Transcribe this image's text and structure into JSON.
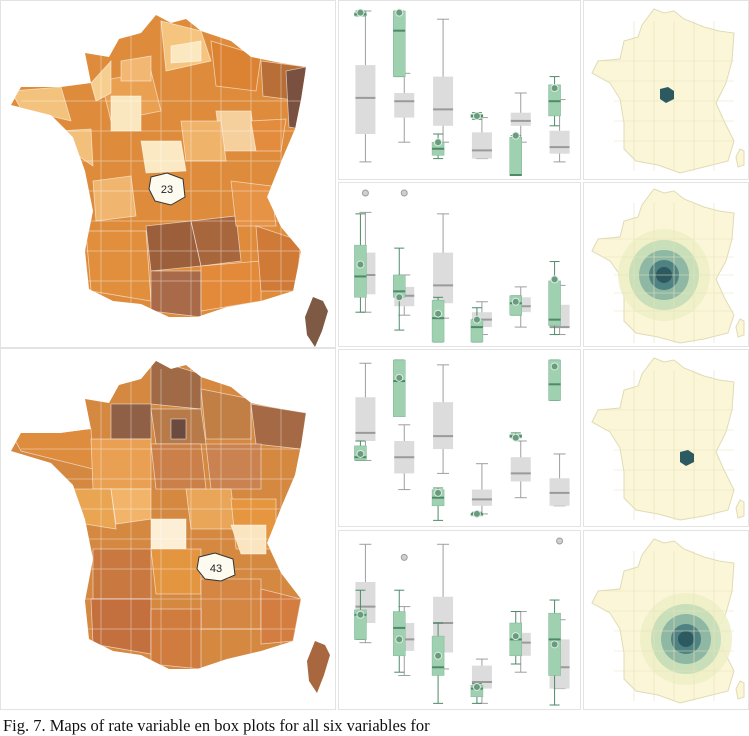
{
  "caption": "Fig. 7. Maps of rate variable en box plots for all six variables for",
  "colors": {
    "orange_dark": "#7e5a45",
    "orange_mid": "#de8a38",
    "orange_light": "#fbe3b6",
    "green_box": "#9fd0b0",
    "green_line": "#4e8a6a",
    "gray_box": "#dcdcdc",
    "gray_line": "#9e9e9e",
    "teal_dark": "#2d5a60",
    "yellow_bg": "#fbf6d8"
  },
  "rows": [
    {
      "highlight_label": "23",
      "boxplots": [
        [
          {
            "g": [
              0.97,
              0.97,
              0.98,
              0.99,
              1.0
            ],
            "o": 0.99,
            "r": [
              0.08,
              0.25,
              0.47,
              0.67,
              1.0
            ],
            "ro": null
          },
          {
            "g": [
              0.6,
              0.6,
              0.88,
              1.0,
              1.0
            ],
            "o": 0.99,
            "r": [
              0.2,
              0.35,
              0.45,
              0.5,
              0.62
            ],
            "ro": null
          },
          {
            "g": [
              0.1,
              0.12,
              0.16,
              0.2,
              0.25
            ],
            "o": 0.2,
            "r": [
              0.2,
              0.3,
              0.4,
              0.6,
              0.95
            ],
            "ro": null
          },
          {
            "g": [
              0.34,
              0.35,
              0.36,
              0.37,
              0.38
            ],
            "o": 0.36,
            "r": [
              0.1,
              0.1,
              0.15,
              0.26,
              0.35
            ],
            "ro": null
          },
          {
            "g": [
              0.0,
              0.0,
              0.0,
              0.23,
              0.24
            ],
            "o": 0.24,
            "r": [
              0.2,
              0.3,
              0.33,
              0.38,
              0.5
            ],
            "ro": null
          },
          {
            "g": [
              0.3,
              0.36,
              0.45,
              0.55,
              0.6
            ],
            "o": 0.53,
            "r": [
              0.08,
              0.13,
              0.17,
              0.27,
              0.46
            ],
            "ro": null
          }
        ],
        [
          {
            "g": [
              0.2,
              0.3,
              0.44,
              0.65,
              0.86
            ],
            "o": 0.52,
            "r": [
              0.2,
              0.32,
              0.45,
              0.6,
              0.87
            ],
            "ro": 1.0
          },
          {
            "g": [
              0.08,
              0.3,
              0.34,
              0.45,
              0.63
            ],
            "o": 0.3,
            "r": [
              0.18,
              0.24,
              0.31,
              0.37,
              0.45
            ],
            "ro": 1.0
          },
          {
            "g": [
              0.0,
              0.0,
              0.16,
              0.28,
              0.3
            ],
            "o": 0.19,
            "r": [
              0.16,
              0.26,
              0.38,
              0.6,
              0.86
            ],
            "ro": null
          },
          {
            "g": [
              0.0,
              0.0,
              0.1,
              0.15,
              0.23
            ],
            "o": 0.15,
            "r": [
              0.05,
              0.1,
              0.15,
              0.2,
              0.27
            ],
            "ro": null
          },
          {
            "g": [
              0.18,
              0.18,
              0.26,
              0.31,
              0.31
            ],
            "o": 0.27,
            "r": [
              0.1,
              0.2,
              0.24,
              0.3,
              0.37
            ],
            "ro": null
          },
          {
            "g": [
              0.05,
              0.11,
              0.15,
              0.41,
              0.54
            ],
            "o": 0.42,
            "r": [
              0.05,
              0.1,
              0.1,
              0.25,
              0.38
            ],
            "ro": null
          }
        ]
      ]
    },
    {
      "highlight_label": "43",
      "boxplots": [
        [
          {
            "g": [
              0.38,
              0.38,
              0.4,
              0.47,
              0.5
            ],
            "o": 0.42,
            "r": [
              0.38,
              0.5,
              0.55,
              0.77,
              0.98
            ],
            "ro": null
          },
          {
            "g": [
              0.75,
              0.65,
              0.87,
              1.0,
              1.0
            ],
            "o": 0.89,
            "r": [
              0.2,
              0.3,
              0.4,
              0.5,
              0.6
            ],
            "ro": null
          },
          {
            "g": [
              0.01,
              0.1,
              0.15,
              0.2,
              0.21
            ],
            "o": 0.18,
            "r": [
              0.3,
              0.45,
              0.53,
              0.74,
              0.97
            ],
            "ro": null
          },
          {
            "g": [
              0.05,
              0.05,
              0.05,
              0.05,
              0.06
            ],
            "o": 0.05,
            "r": [
              0.05,
              0.1,
              0.14,
              0.2,
              0.36
            ],
            "ro": null
          },
          {
            "g": [
              0.52,
              0.52,
              0.53,
              0.54,
              0.55
            ],
            "o": 0.52,
            "r": [
              0.15,
              0.25,
              0.3,
              0.4,
              0.5
            ],
            "ro": null
          },
          {
            "g": [
              0.75,
              0.75,
              0.85,
              1.0,
              1.0
            ],
            "o": 0.96,
            "r": [
              0.1,
              0.1,
              0.18,
              0.27,
              0.42
            ],
            "ro": null
          }
        ],
        [
          {
            "g": [
              0.4,
              0.4,
              0.55,
              0.58,
              0.7
            ],
            "o": 0.55,
            "r": [
              0.38,
              0.5,
              0.6,
              0.75,
              0.98
            ],
            "ro": null
          },
          {
            "g": [
              0.2,
              0.3,
              0.47,
              0.57,
              0.7
            ],
            "o": 0.4,
            "r": [
              0.18,
              0.33,
              0.4,
              0.5,
              0.6
            ],
            "ro": 0.9
          },
          {
            "g": [
              0.01,
              0.18,
              0.23,
              0.42,
              0.5
            ],
            "o": 0.3,
            "r": [
              0.22,
              0.32,
              0.5,
              0.66,
              0.98
            ],
            "ro": null
          },
          {
            "g": [
              0.01,
              0.05,
              0.1,
              0.12,
              0.13
            ],
            "o": 0.11,
            "r": [
              0.01,
              0.1,
              0.14,
              0.24,
              0.28
            ],
            "ro": null
          },
          {
            "g": [
              0.25,
              0.3,
              0.4,
              0.5,
              0.57
            ],
            "o": 0.42,
            "r": [
              0.2,
              0.3,
              0.38,
              0.44,
              0.57
            ],
            "ro": null
          },
          {
            "g": [
              0.0,
              0.18,
              0.4,
              0.56,
              0.64
            ],
            "o": 0.37,
            "r": [
              0.1,
              0.1,
              0.23,
              0.4,
              0.52
            ],
            "ro": 1.0
          }
        ]
      ]
    }
  ]
}
